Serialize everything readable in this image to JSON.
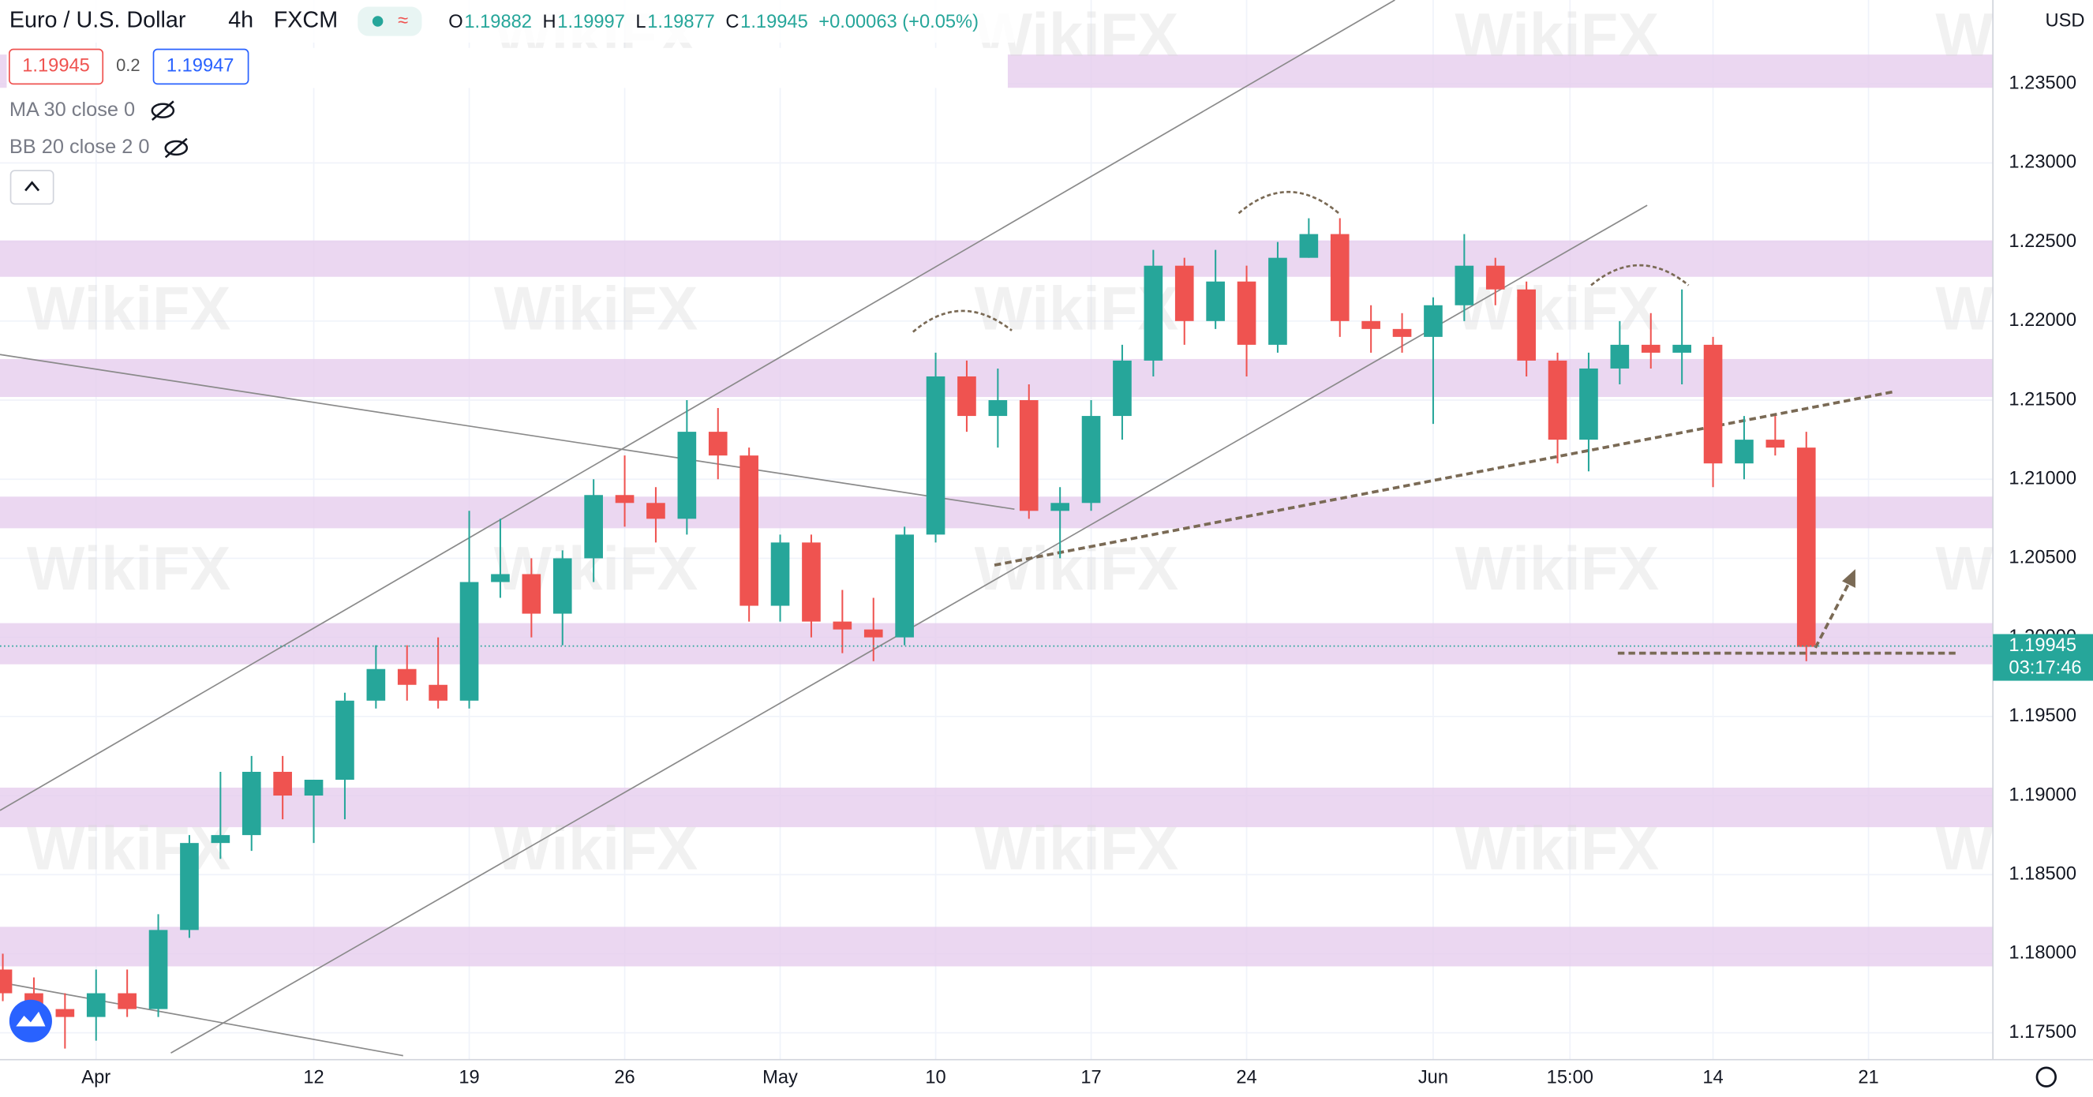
{
  "header": {
    "symbol": "Euro / U.S. Dollar",
    "interval": "4h",
    "exchange": "FXCM",
    "ohlc": [
      {
        "key": "O",
        "value": "1.19882"
      },
      {
        "key": "H",
        "value": "1.19997"
      },
      {
        "key": "L",
        "value": "1.19877"
      },
      {
        "key": "C",
        "value": "1.19945"
      }
    ],
    "change": "+0.00063 (+0.05%)",
    "sell": "1.19945",
    "spread": "0.2",
    "buy": "1.19947",
    "indicators": [
      "MA 30 close 0",
      "BB 20 close 2 0"
    ],
    "currency": "USD",
    "watermark": "WikiFX",
    "countdown": "03:17:46"
  },
  "chart_data": {
    "type": "candlestick",
    "up_color": "#26a69a",
    "down_color": "#ef5350",
    "zone_color": "#e6cdee",
    "x": [
      -3,
      -2,
      -1,
      0,
      1,
      2,
      3,
      4,
      5,
      6,
      7,
      8,
      9,
      10,
      11,
      12,
      13,
      14,
      15,
      16,
      17,
      18,
      19,
      20,
      21,
      22,
      23,
      24,
      25,
      26,
      27,
      28,
      29,
      30,
      31,
      32,
      33,
      34,
      35,
      36,
      37,
      38,
      39,
      40,
      41,
      42,
      43,
      44,
      45,
      46,
      47,
      48,
      49,
      50,
      51,
      52,
      53,
      54,
      55
    ],
    "open": [
      1.179,
      1.1775,
      1.1765,
      1.176,
      1.1775,
      1.1765,
      1.1815,
      1.187,
      1.1875,
      1.1915,
      1.19,
      1.191,
      1.196,
      1.198,
      1.197,
      1.196,
      1.2035,
      1.204,
      1.2015,
      1.205,
      1.209,
      1.2085,
      1.2075,
      1.213,
      1.2115,
      1.202,
      1.206,
      1.201,
      1.2005,
      1.2,
      1.2065,
      1.2165,
      1.214,
      1.215,
      1.208,
      1.2085,
      1.214,
      1.2175,
      1.2235,
      1.22,
      1.2225,
      1.2185,
      1.224,
      1.2255,
      1.22,
      1.2195,
      1.219,
      1.221,
      1.2235,
      1.222,
      1.2175,
      1.2125,
      1.217,
      1.2185,
      1.218,
      1.2185,
      1.211,
      1.2125,
      1.212
    ],
    "high": [
      1.18,
      1.1785,
      1.1775,
      1.179,
      1.179,
      1.1825,
      1.1875,
      1.1915,
      1.1925,
      1.1925,
      1.191,
      1.1965,
      1.1995,
      1.1995,
      1.2,
      1.208,
      1.2075,
      1.205,
      1.2055,
      1.21,
      1.2115,
      1.2095,
      1.215,
      1.2145,
      1.212,
      1.2065,
      1.2065,
      1.203,
      1.2025,
      1.207,
      1.218,
      1.2175,
      1.217,
      1.216,
      1.2095,
      1.215,
      1.2185,
      1.2245,
      1.224,
      1.2245,
      1.2235,
      1.225,
      1.2265,
      1.2265,
      1.221,
      1.2205,
      1.2215,
      1.2255,
      1.224,
      1.2225,
      1.218,
      1.218,
      1.22,
      1.2205,
      1.222,
      1.219,
      1.214,
      1.214,
      1.213
    ],
    "low": [
      1.177,
      1.1755,
      1.174,
      1.1745,
      1.176,
      1.176,
      1.181,
      1.186,
      1.1865,
      1.1885,
      1.187,
      1.1885,
      1.1955,
      1.196,
      1.1955,
      1.1955,
      1.2025,
      1.2,
      1.1995,
      1.2035,
      1.207,
      1.206,
      1.2065,
      1.21,
      1.201,
      1.201,
      1.2,
      1.199,
      1.1985,
      1.1995,
      1.206,
      1.213,
      1.212,
      1.2075,
      1.205,
      1.208,
      1.2125,
      1.2165,
      1.2185,
      1.2195,
      1.2165,
      1.218,
      1.224,
      1.219,
      1.218,
      1.218,
      1.2135,
      1.22,
      1.221,
      1.2165,
      1.211,
      1.2105,
      1.216,
      1.217,
      1.216,
      1.2095,
      1.21,
      1.2115,
      1.1985
    ],
    "close": [
      1.1775,
      1.1765,
      1.176,
      1.1775,
      1.1765,
      1.1815,
      1.187,
      1.1875,
      1.1915,
      1.19,
      1.191,
      1.196,
      1.198,
      1.197,
      1.196,
      1.2035,
      1.204,
      1.2015,
      1.205,
      1.209,
      1.2085,
      1.2075,
      1.213,
      1.2115,
      1.202,
      1.206,
      1.201,
      1.2005,
      1.2,
      1.2065,
      1.2165,
      1.214,
      1.215,
      1.208,
      1.2085,
      1.214,
      1.2175,
      1.2235,
      1.22,
      1.2225,
      1.2185,
      1.224,
      1.2255,
      1.22,
      1.2195,
      1.219,
      1.221,
      1.2235,
      1.222,
      1.2175,
      1.2125,
      1.217,
      1.2185,
      1.218,
      1.2185,
      1.211,
      1.2125,
      1.212,
      1.1994
    ],
    "xlim": [
      -3.09,
      61
    ],
    "xticks": [
      {
        "value": 0,
        "label": "Apr"
      },
      {
        "value": 7,
        "label": "12"
      },
      {
        "value": 12,
        "label": "19"
      },
      {
        "value": 17,
        "label": "26"
      },
      {
        "value": 22,
        "label": "May"
      },
      {
        "value": 27,
        "label": "10"
      },
      {
        "value": 32,
        "label": "17"
      },
      {
        "value": 37,
        "label": "24"
      },
      {
        "value": 43,
        "label": "Jun"
      },
      {
        "value": 47.4,
        "label": "15:00"
      },
      {
        "value": 52,
        "label": "14"
      },
      {
        "value": 57,
        "label": "21"
      }
    ],
    "ylim": [
      1.1733,
      1.2403
    ],
    "yticks": [
      {
        "value": 1.175,
        "label": "1.17500"
      },
      {
        "value": 1.18,
        "label": "1.18000"
      },
      {
        "value": 1.185,
        "label": "1.18500"
      },
      {
        "value": 1.19,
        "label": "1.19000"
      },
      {
        "value": 1.195,
        "label": "1.19500"
      },
      {
        "value": 1.2,
        "label": "1.20000"
      },
      {
        "value": 1.205,
        "label": "1.20500"
      },
      {
        "value": 1.21,
        "label": "1.21000"
      },
      {
        "value": 1.215,
        "label": "1.21500"
      },
      {
        "value": 1.22,
        "label": "1.22000"
      },
      {
        "value": 1.225,
        "label": "1.22500"
      },
      {
        "value": 1.23,
        "label": "1.23000"
      },
      {
        "value": 1.235,
        "label": "1.23500"
      }
    ],
    "zones": [
      [
        1.23475,
        1.23685
      ],
      [
        1.2228,
        1.2251
      ],
      [
        1.2152,
        1.2176
      ],
      [
        1.2069,
        1.2089
      ],
      [
        1.1983,
        1.2009
      ],
      [
        1.188,
        1.1905
      ],
      [
        1.1792,
        1.1817
      ]
    ],
    "price_line": 1.19945,
    "grid": true
  }
}
